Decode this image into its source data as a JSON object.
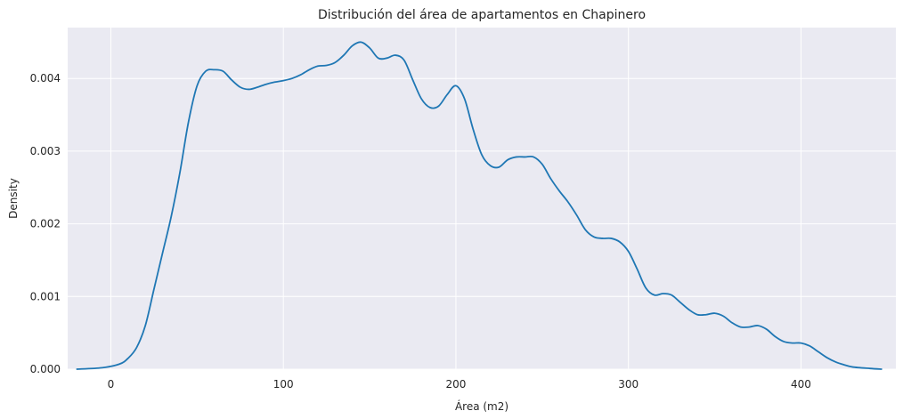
{
  "chart_data": {
    "type": "line",
    "title": "Distribución del área de apartamentos en Chapinero",
    "xlabel": "Área (m2)",
    "ylabel": "Density",
    "xlim": [
      -25,
      455
    ],
    "ylim": [
      0,
      0.0047
    ],
    "xticks": [
      0,
      100,
      200,
      300,
      400
    ],
    "yticks": [
      0.0,
      0.001,
      0.002,
      0.003,
      0.004
    ],
    "xtick_labels": [
      "0",
      "100",
      "200",
      "300",
      "400"
    ],
    "ytick_labels": [
      "0.000",
      "0.001",
      "0.002",
      "0.003",
      "0.004"
    ],
    "grid": true,
    "background": "#eaeaf2",
    "grid_color": "#ffffff",
    "line_color": "#1f77b4",
    "series": [
      {
        "x": [
          -20,
          -5,
          5,
          10,
          15,
          20,
          25,
          30,
          35,
          40,
          45,
          50,
          55,
          60,
          65,
          70,
          75,
          80,
          85,
          90,
          95,
          100,
          105,
          110,
          115,
          120,
          125,
          130,
          135,
          140,
          145,
          150,
          155,
          160,
          165,
          170,
          175,
          180,
          185,
          190,
          195,
          200,
          205,
          210,
          215,
          220,
          225,
          230,
          235,
          240,
          245,
          250,
          255,
          260,
          265,
          270,
          275,
          280,
          285,
          290,
          295,
          300,
          305,
          310,
          315,
          320,
          325,
          330,
          335,
          340,
          345,
          350,
          355,
          360,
          365,
          370,
          375,
          380,
          385,
          390,
          395,
          400,
          405,
          410,
          415,
          420,
          425,
          430,
          440,
          447
        ],
        "y": [
          0.0,
          2e-05,
          7e-05,
          0.00015,
          0.0003,
          0.0006,
          0.0011,
          0.0016,
          0.0021,
          0.0027,
          0.0034,
          0.0039,
          0.0041,
          0.00412,
          0.0041,
          0.00398,
          0.00388,
          0.00385,
          0.00388,
          0.00392,
          0.00395,
          0.00397,
          0.004,
          0.00405,
          0.00412,
          0.00417,
          0.00418,
          0.00422,
          0.00432,
          0.00445,
          0.0045,
          0.00442,
          0.00428,
          0.00428,
          0.00432,
          0.00425,
          0.00398,
          0.00372,
          0.0036,
          0.00362,
          0.00378,
          0.0039,
          0.00372,
          0.0033,
          0.00295,
          0.0028,
          0.00278,
          0.00288,
          0.00292,
          0.00292,
          0.00292,
          0.00282,
          0.00262,
          0.00245,
          0.0023,
          0.00212,
          0.00192,
          0.00182,
          0.0018,
          0.0018,
          0.00175,
          0.00162,
          0.00138,
          0.00112,
          0.00102,
          0.00104,
          0.00102,
          0.00092,
          0.00082,
          0.00075,
          0.00075,
          0.00077,
          0.00073,
          0.00064,
          0.00058,
          0.00058,
          0.0006,
          0.00055,
          0.00045,
          0.00038,
          0.00036,
          0.00036,
          0.00032,
          0.00024,
          0.00016,
          0.0001,
          6e-05,
          3e-05,
          1e-05,
          0.0
        ]
      }
    ]
  }
}
